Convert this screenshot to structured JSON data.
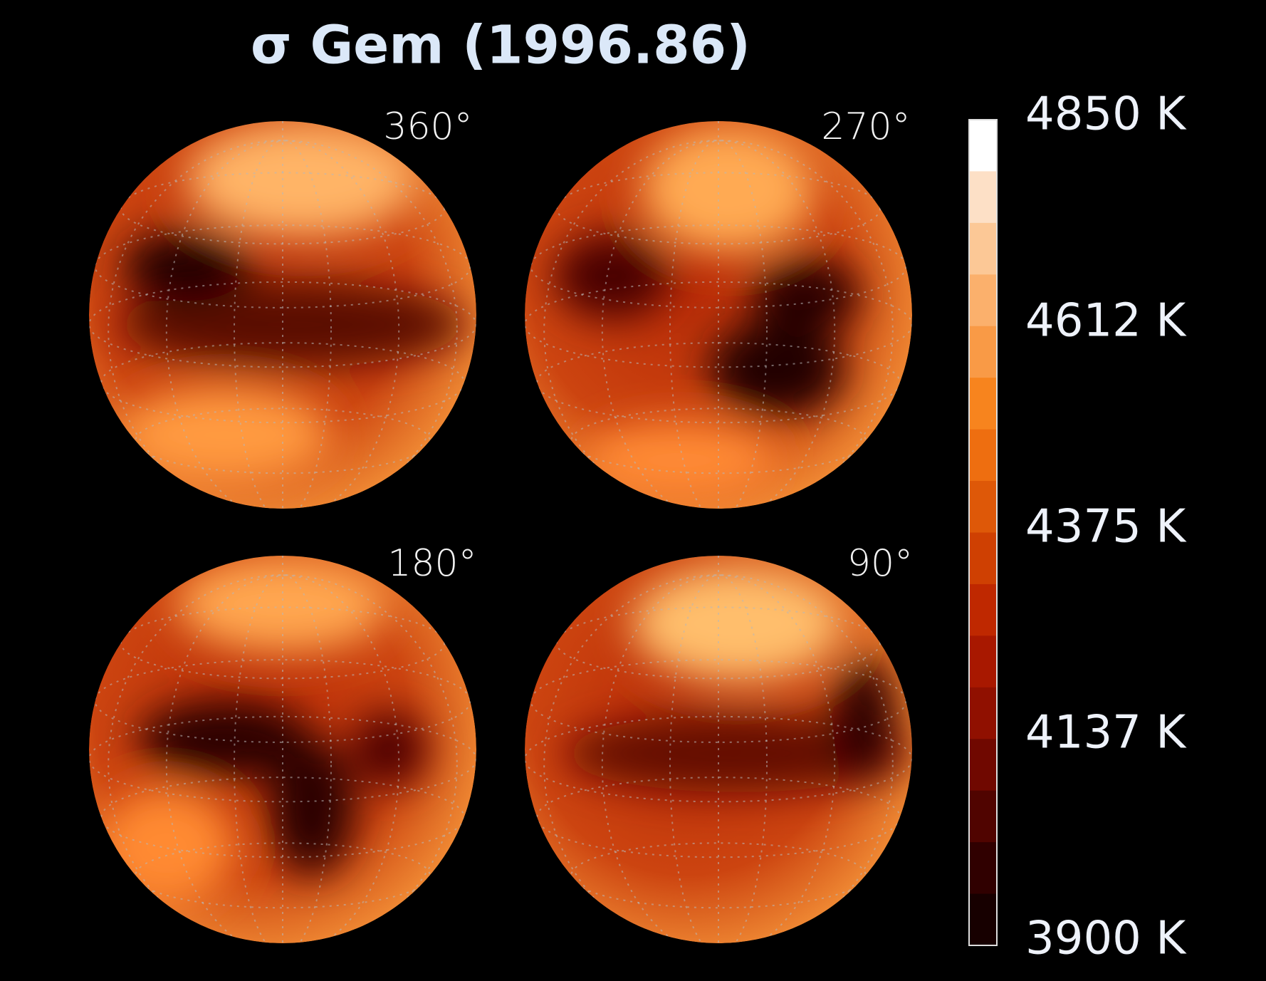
{
  "title": "σ Gem (1996.86)",
  "panels": [
    {
      "label": "360°"
    },
    {
      "label": "270°"
    },
    {
      "label": "180°"
    },
    {
      "label": "90°"
    }
  ],
  "colorbar": {
    "labels": [
      "4850 K",
      "4612 K",
      "4375 K",
      "4137 K",
      "3900 K"
    ]
  }
}
